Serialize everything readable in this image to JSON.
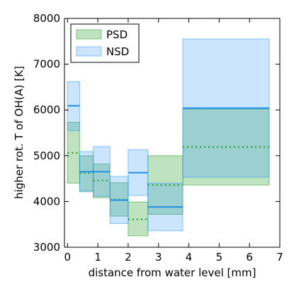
{
  "chart_data": {
    "type": "area",
    "xlabel": "distance from water level [mm]",
    "ylabel": "higher rot. T of OH(A) [K]",
    "xlim": [
      -0.1,
      7
    ],
    "ylim": [
      3000,
      8000
    ],
    "xticks": [
      "0",
      "1",
      "2",
      "3",
      "4",
      "5",
      "6",
      "7"
    ],
    "yticks": [
      "3000",
      "4000",
      "5000",
      "6000",
      "7000",
      "8000"
    ],
    "legend_position": "top-left",
    "series": [
      {
        "name": "PSD",
        "fill_color": "#2ca02c",
        "line_color": "#2ca02c",
        "line_style": "dotted",
        "segments": [
          {
            "x0": 0.0,
            "x1": 0.4,
            "low": 4400,
            "high": 5730,
            "mean": 5060
          },
          {
            "x0": 0.4,
            "x1": 0.85,
            "low": 4230,
            "high": 5000,
            "mean": 4620
          },
          {
            "x0": 0.85,
            "x1": 1.4,
            "low": 4080,
            "high": 4820,
            "mean": 4460
          },
          {
            "x0": 1.4,
            "x1": 2.0,
            "low": 3680,
            "high": 4410,
            "mean": 4040
          },
          {
            "x0": 2.0,
            "x1": 2.65,
            "low": 3250,
            "high": 3990,
            "mean": 3610
          },
          {
            "x0": 2.65,
            "x1": 3.8,
            "low": 3720,
            "high": 5000,
            "mean": 4360
          },
          {
            "x0": 3.8,
            "x1": 6.65,
            "low": 4360,
            "high": 6020,
            "mean": 5190
          }
        ]
      },
      {
        "name": "NSD",
        "fill_color": "#3399ff",
        "line_color": "#1f8fe8",
        "line_style": "solid",
        "segments": [
          {
            "x0": 0.0,
            "x1": 0.4,
            "low": 5550,
            "high": 6620,
            "mean": 6090
          },
          {
            "x0": 0.4,
            "x1": 0.85,
            "low": 4210,
            "high": 5090,
            "mean": 4650
          },
          {
            "x0": 0.85,
            "x1": 1.4,
            "low": 4110,
            "high": 5200,
            "mean": 4650
          },
          {
            "x0": 1.4,
            "x1": 2.0,
            "low": 3520,
            "high": 4550,
            "mean": 4030
          },
          {
            "x0": 2.0,
            "x1": 2.65,
            "low": 4130,
            "high": 5130,
            "mean": 4630
          },
          {
            "x0": 2.65,
            "x1": 3.8,
            "low": 3360,
            "high": 4400,
            "mean": 3880
          },
          {
            "x0": 3.8,
            "x1": 6.65,
            "low": 4530,
            "high": 7550,
            "mean": 6040
          }
        ]
      }
    ]
  }
}
